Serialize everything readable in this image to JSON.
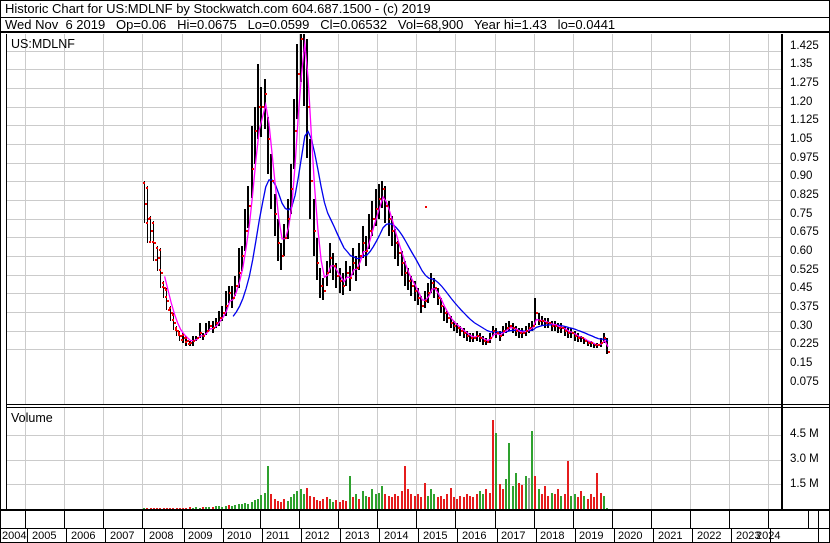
{
  "header": {
    "line1": "Historic Chart for US:MDLNF by Stockwatch.com 604.687.1500 - (c) 2019",
    "line2": "Wed Nov  6 2019   Op=0.06   Hi=0.0675   Lo=0.0599   Cl=0.06532   Vol=68,900   Year hi=1.43   lo=0.0441"
  },
  "price_pane": {
    "symbol": "US:MDLNF"
  },
  "volume_pane": {
    "label": "Volume"
  },
  "price_axis": {
    "tick_labels": [
      "1.425",
      "1.35",
      "1.275",
      "1.20",
      "1.125",
      "1.05",
      "0.975",
      "0.90",
      "0.825",
      "0.75",
      "0.675",
      "0.60",
      "0.525",
      "0.45",
      "0.375",
      "0.30",
      "0.225",
      "0.15",
      "0.075"
    ],
    "tick_values": [
      1.425,
      1.35,
      1.275,
      1.2,
      1.125,
      1.05,
      0.975,
      0.9,
      0.825,
      0.75,
      0.675,
      0.6,
      0.525,
      0.45,
      0.375,
      0.3,
      0.225,
      0.15,
      0.075
    ]
  },
  "volume_axis": {
    "tick_labels": [
      "4.5 M",
      "3.0 M",
      "1.5 M"
    ],
    "tick_values_m": [
      4.5,
      3.0,
      1.5
    ]
  },
  "x_axis": {
    "years": [
      "2004",
      "2005",
      "2006",
      "2007",
      "2008",
      "2009",
      "2010",
      "2011",
      "2012",
      "2013",
      "2014",
      "2015",
      "2016",
      "2017",
      "2018",
      "2019",
      "2020",
      "2021",
      "2022",
      "2023",
      "2024"
    ]
  },
  "colors": {
    "grid": "#cbcbcb",
    "bar": "#000000",
    "close_dot": "#f00000",
    "ma_fast": "#ff00ff",
    "ma_slow": "#0000ee",
    "vol_up": "#2ea12e",
    "vol_down": "#e51c1c",
    "vol_neutral": "#9e9e9e"
  },
  "chart_data": {
    "type": "ohlc+volume",
    "title": "Historic Chart for US:MDLNF",
    "x_range_years": [
      2004,
      2024.6
    ],
    "data_start_year": 2008.0,
    "x_step_months": 1,
    "price_ylim": [
      0,
      1.47
    ],
    "volume_ylim_m": [
      0,
      6.1
    ],
    "grid": true,
    "closes": [
      0.66,
      0.6,
      0.55,
      0.5,
      0.44,
      0.38,
      0.32,
      0.27,
      0.22,
      0.18,
      0.15,
      0.13,
      0.12,
      0.11,
      0.1,
      0.11,
      0.12,
      0.14,
      0.13,
      0.15,
      0.17,
      0.16,
      0.18,
      0.2,
      0.22,
      0.25,
      0.3,
      0.28,
      0.33,
      0.38,
      0.45,
      0.55,
      0.65,
      0.8,
      0.95,
      1.05,
      1.05,
      1.1,
      0.92,
      0.75,
      0.62,
      0.5,
      0.45,
      0.52,
      0.6,
      0.72,
      0.95,
      1.18,
      1.32,
      1.4,
      1.05,
      0.75,
      0.55,
      0.42,
      0.33,
      0.31,
      0.38,
      0.44,
      0.41,
      0.37,
      0.35,
      0.33,
      0.38,
      0.36,
      0.42,
      0.4,
      0.45,
      0.5,
      0.47,
      0.55,
      0.6,
      0.64,
      0.68,
      0.72,
      0.65,
      0.6,
      0.55,
      0.5,
      0.46,
      0.42,
      0.38,
      0.35,
      0.33,
      0.31,
      0.28,
      0.25,
      0.27,
      0.3,
      0.34,
      0.32,
      0.28,
      0.25,
      0.22,
      0.2,
      0.18,
      0.17,
      0.16,
      0.15,
      0.14,
      0.13,
      0.12,
      0.12,
      0.13,
      0.12,
      0.11,
      0.105,
      0.12,
      0.15,
      0.14,
      0.13,
      0.15,
      0.16,
      0.17,
      0.16,
      0.15,
      0.14,
      0.14,
      0.15,
      0.16,
      0.17,
      0.22,
      0.19,
      0.19,
      0.18,
      0.18,
      0.17,
      0.17,
      0.16,
      0.16,
      0.15,
      0.14,
      0.14,
      0.13,
      0.12,
      0.12,
      0.11,
      0.1,
      0.1,
      0.09,
      0.09,
      0.1,
      0.12,
      0.065
    ],
    "highs": [
      0.75,
      0.73,
      0.61,
      0.59,
      0.49,
      0.48,
      0.35,
      0.32,
      0.25,
      0.22,
      0.17,
      0.15,
      0.14,
      0.13,
      0.11,
      0.13,
      0.13,
      0.18,
      0.14,
      0.18,
      0.19,
      0.19,
      0.2,
      0.23,
      0.25,
      0.31,
      0.33,
      0.33,
      0.37,
      0.48,
      0.49,
      0.64,
      0.73,
      0.97,
      1.05,
      1.22,
      1.13,
      1.16,
      1.01,
      0.86,
      0.7,
      0.6,
      0.5,
      0.58,
      0.68,
      0.82,
      1.08,
      1.3,
      1.39,
      1.425,
      1.32,
      0.92,
      0.68,
      0.52,
      0.4,
      0.36,
      0.43,
      0.5,
      0.46,
      0.42,
      0.4,
      0.38,
      0.43,
      0.41,
      0.48,
      0.45,
      0.5,
      0.57,
      0.53,
      0.62,
      0.67,
      0.72,
      0.74,
      0.75,
      0.73,
      0.67,
      0.61,
      0.56,
      0.51,
      0.47,
      0.43,
      0.4,
      0.37,
      0.35,
      0.32,
      0.29,
      0.31,
      0.34,
      0.38,
      0.36,
      0.32,
      0.28,
      0.25,
      0.23,
      0.21,
      0.19,
      0.18,
      0.17,
      0.16,
      0.15,
      0.14,
      0.14,
      0.15,
      0.14,
      0.13,
      0.12,
      0.14,
      0.17,
      0.16,
      0.15,
      0.17,
      0.18,
      0.19,
      0.18,
      0.17,
      0.16,
      0.16,
      0.17,
      0.18,
      0.19,
      0.28,
      0.22,
      0.21,
      0.2,
      0.2,
      0.19,
      0.19,
      0.18,
      0.18,
      0.17,
      0.16,
      0.16,
      0.15,
      0.14,
      0.13,
      0.12,
      0.11,
      0.11,
      0.1,
      0.1,
      0.12,
      0.14,
      0.12
    ],
    "lows": [
      0.58,
      0.5,
      0.5,
      0.43,
      0.39,
      0.32,
      0.28,
      0.23,
      0.19,
      0.15,
      0.13,
      0.11,
      0.1,
      0.09,
      0.09,
      0.09,
      0.11,
      0.12,
      0.11,
      0.13,
      0.15,
      0.14,
      0.16,
      0.17,
      0.19,
      0.21,
      0.26,
      0.24,
      0.29,
      0.32,
      0.39,
      0.47,
      0.56,
      0.68,
      0.82,
      0.92,
      0.93,
      0.96,
      0.78,
      0.64,
      0.53,
      0.43,
      0.39,
      0.45,
      0.52,
      0.62,
      0.8,
      1.0,
      1.15,
      1.05,
      0.84,
      0.6,
      0.45,
      0.35,
      0.28,
      0.27,
      0.33,
      0.38,
      0.35,
      0.32,
      0.3,
      0.29,
      0.33,
      0.31,
      0.37,
      0.35,
      0.39,
      0.44,
      0.41,
      0.48,
      0.53,
      0.57,
      0.6,
      0.64,
      0.58,
      0.53,
      0.49,
      0.44,
      0.41,
      0.37,
      0.33,
      0.31,
      0.29,
      0.27,
      0.25,
      0.22,
      0.24,
      0.26,
      0.3,
      0.28,
      0.25,
      0.22,
      0.19,
      0.18,
      0.16,
      0.15,
      0.14,
      0.13,
      0.12,
      0.11,
      0.105,
      0.105,
      0.11,
      0.105,
      0.095,
      0.09,
      0.1,
      0.13,
      0.12,
      0.11,
      0.13,
      0.14,
      0.15,
      0.14,
      0.13,
      0.12,
      0.12,
      0.13,
      0.14,
      0.15,
      0.17,
      0.17,
      0.17,
      0.16,
      0.16,
      0.15,
      0.15,
      0.14,
      0.14,
      0.13,
      0.12,
      0.12,
      0.11,
      0.105,
      0.105,
      0.095,
      0.09,
      0.085,
      0.08,
      0.08,
      0.085,
      0.1,
      0.056
    ],
    "volumes_m": [
      0.03,
      0.02,
      0.04,
      0.03,
      0.02,
      0.05,
      0.04,
      0.03,
      0.06,
      0.05,
      0.04,
      0.06,
      0.08,
      0.06,
      0.1,
      0.08,
      0.12,
      0.09,
      0.11,
      0.14,
      0.1,
      0.13,
      0.16,
      0.18,
      0.15,
      0.2,
      0.25,
      0.18,
      0.22,
      0.3,
      0.28,
      0.35,
      0.3,
      0.4,
      0.55,
      0.6,
      0.85,
      1.0,
      2.6,
      0.9,
      0.6,
      0.5,
      0.45,
      0.6,
      0.5,
      0.7,
      0.9,
      1.1,
      1.2,
      0.9,
      1.3,
      0.8,
      0.7,
      0.55,
      0.5,
      0.6,
      0.7,
      0.6,
      0.45,
      0.55,
      0.4,
      0.55,
      0.5,
      2.0,
      0.7,
      0.9,
      0.6,
      1.1,
      0.8,
      0.7,
      1.2,
      0.9,
      1.0,
      1.4,
      0.9,
      0.8,
      0.7,
      0.9,
      0.8,
      1.1,
      2.6,
      1.2,
      0.9,
      0.8,
      0.9,
      0.7,
      1.6,
      0.8,
      1.2,
      0.9,
      0.7,
      0.8,
      0.6,
      0.9,
      1.3,
      0.7,
      0.6,
      0.8,
      0.7,
      0.9,
      0.8,
      0.7,
      0.9,
      1.1,
      0.9,
      1.2,
      1.0,
      5.4,
      4.6,
      1.5,
      1.2,
      1.8,
      4.0,
      1.4,
      2.2,
      1.6,
      1.45,
      2.0,
      1.9,
      4.75,
      2.0,
      1.2,
      0.9,
      1.4,
      0.8,
      1.0,
      0.9,
      1.2,
      0.8,
      0.9,
      2.9,
      0.8,
      0.9,
      0.7,
      1.1,
      0.8,
      0.6,
      0.9,
      0.7,
      2.2,
      1.0,
      0.8,
      0.07
    ],
    "volume_color_codes": "grrrrrrrrrrrrrrgggrggrggggrggggggggggggrrrrrggggggrrrrrrrggrrrrgrgrggrggggrrrrrrrrrrrrrgggrrrrrrrrrrrrrggrrrgrrggggrrgagrgrrrgrrgrrggrrgrrrrrggrr",
    "ma_fast": {
      "name": "fast moving average",
      "ema_alpha": 0.55,
      "start_index": 6
    },
    "ma_slow": {
      "name": "slow moving average",
      "ema_alpha": 0.15,
      "seed_index": 12,
      "start_index": 27
    },
    "outlier_dot": {
      "index": 86,
      "price": 0.65
    }
  }
}
